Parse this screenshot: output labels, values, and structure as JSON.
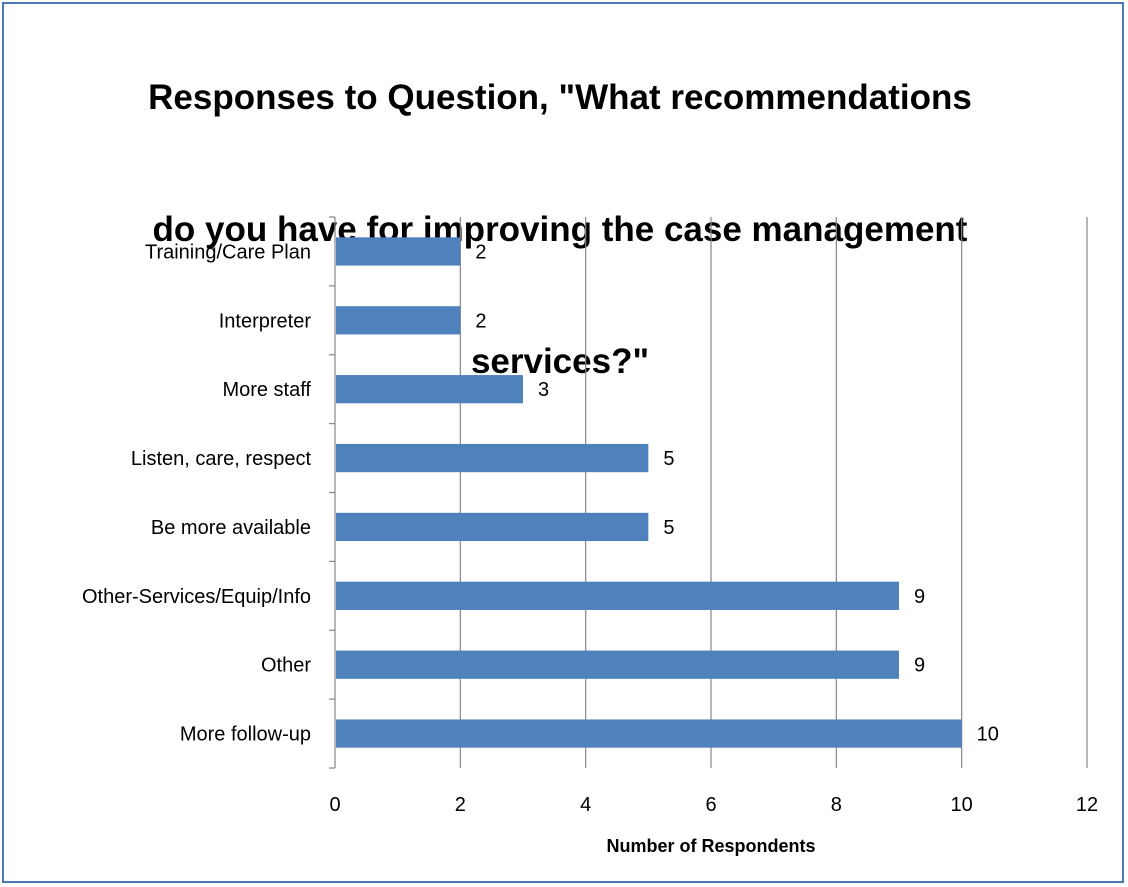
{
  "chart_data": {
    "type": "bar",
    "orientation": "horizontal",
    "title": "Responses to Question, \"What recommendations do you have for improving the case management services?\"",
    "title_lines": [
      "Responses to Question, \"What recommendations",
      "do you have for improving the case management",
      "services?\""
    ],
    "categories": [
      "Training/Care Plan",
      "Interpreter",
      "More staff",
      "Listen, care, respect",
      "Be more available",
      "Other-Services/Equip/Info",
      "Other",
      "More follow-up"
    ],
    "values": [
      2,
      2,
      3,
      5,
      5,
      9,
      9,
      10
    ],
    "data_labels": [
      "2",
      "2",
      "3",
      "5",
      "5",
      "9",
      "9",
      "10"
    ],
    "xlabel": "Number of Respondents",
    "ylabel": "",
    "xlim": [
      0,
      12
    ],
    "x_ticks": [
      0,
      2,
      4,
      6,
      8,
      10,
      12
    ],
    "x_tick_labels": [
      "0",
      "2",
      "4",
      "6",
      "8",
      "10",
      "12"
    ],
    "grid": "vertical",
    "legend": "none",
    "colors": {
      "bar": "#4f81bd",
      "gridline": "#868686",
      "frame_border": "#4a7ab5"
    }
  }
}
